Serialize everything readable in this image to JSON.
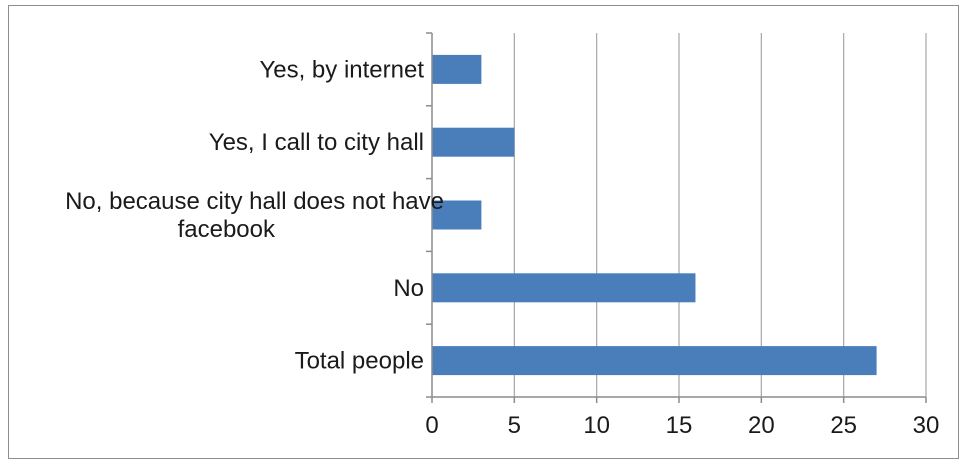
{
  "chart_data": {
    "type": "bar",
    "orientation": "horizontal",
    "title": "",
    "xlabel": "",
    "ylabel": "",
    "categories": [
      "Yes, by internet",
      "Yes, I call to city hall",
      "No, because city hall does not have facebook",
      "No",
      "Total people"
    ],
    "category_lines": [
      [
        "Yes, by internet"
      ],
      [
        "Yes, I call to city hall"
      ],
      [
        "No, because city hall does not have",
        "facebook"
      ],
      [
        "No"
      ],
      [
        "Total people"
      ]
    ],
    "values": [
      3,
      5,
      3,
      16,
      27
    ],
    "xlim": [
      0,
      30
    ],
    "ticks": [
      0,
      5,
      10,
      15,
      20,
      25,
      30
    ],
    "tick_labels": [
      "0",
      "5",
      "10",
      "15",
      "20",
      "25",
      "30"
    ],
    "grid": true,
    "legend": "none",
    "bar_color": "#4a7ebb"
  }
}
